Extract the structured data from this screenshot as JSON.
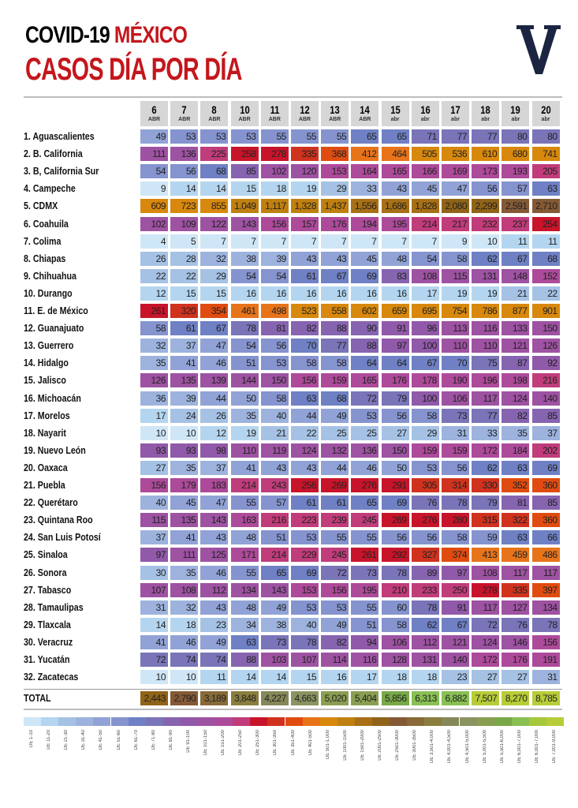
{
  "header": {
    "title_part1": "COVID-19 ",
    "title_part2": "MÉXICO",
    "subtitle": "CASOS DÍA POR DÍA",
    "logo_letter": "V"
  },
  "chart_data": {
    "type": "heatmap",
    "title": "COVID-19 MÉXICO CASOS DÍA POR DÍA",
    "columns": [
      {
        "day": "6",
        "month": "ABR"
      },
      {
        "day": "7",
        "month": "ABR"
      },
      {
        "day": "8",
        "month": "ABR"
      },
      {
        "day": "10",
        "month": "ABR"
      },
      {
        "day": "11",
        "month": "ABR"
      },
      {
        "day": "12",
        "month": "ABR"
      },
      {
        "day": "13",
        "month": "ABR"
      },
      {
        "day": "14",
        "month": "ABR"
      },
      {
        "day": "15",
        "month": "abr"
      },
      {
        "day": "16",
        "month": "abr"
      },
      {
        "day": "17",
        "month": "abr"
      },
      {
        "day": "18",
        "month": "abr"
      },
      {
        "day": "19",
        "month": "abr"
      },
      {
        "day": "20",
        "month": "abr"
      }
    ],
    "rows": [
      {
        "label": "1. Aguascalientes",
        "values": [
          49,
          53,
          53,
          53,
          55,
          55,
          55,
          65,
          65,
          71,
          77,
          77,
          80,
          80
        ]
      },
      {
        "label": "2. B. California",
        "values": [
          111,
          136,
          225,
          258,
          278,
          335,
          368,
          412,
          464,
          505,
          536,
          610,
          680,
          741
        ]
      },
      {
        "label": "3. B, California Sur",
        "values": [
          54,
          56,
          68,
          85,
          102,
          120,
          153,
          164,
          165,
          166,
          169,
          173,
          193,
          205
        ]
      },
      {
        "label": "4. Campeche",
        "values": [
          9,
          14,
          14,
          15,
          18,
          19,
          29,
          33,
          43,
          45,
          47,
          56,
          57,
          63
        ]
      },
      {
        "label": "5. CDMX",
        "values": [
          609,
          723,
          855,
          1049,
          1117,
          1328,
          1437,
          1556,
          1686,
          1828,
          2080,
          2299,
          2591,
          2710
        ]
      },
      {
        "label": "6. Coahuila",
        "values": [
          102,
          109,
          122,
          143,
          156,
          157,
          176,
          194,
          195,
          214,
          217,
          232,
          237,
          254
        ]
      },
      {
        "label": "7. Colima",
        "values": [
          4,
          5,
          7,
          7,
          7,
          7,
          7,
          7,
          7,
          7,
          9,
          10,
          11,
          11
        ]
      },
      {
        "label": "8. Chiapas",
        "values": [
          26,
          28,
          32,
          38,
          39,
          43,
          43,
          45,
          48,
          54,
          58,
          62,
          67,
          68
        ]
      },
      {
        "label": "9. Chihuahua",
        "values": [
          22,
          22,
          29,
          54,
          54,
          61,
          67,
          69,
          83,
          108,
          115,
          131,
          148,
          152
        ]
      },
      {
        "label": "10. Durango",
        "values": [
          12,
          15,
          15,
          16,
          16,
          16,
          16,
          16,
          16,
          17,
          19,
          19,
          21,
          22
        ]
      },
      {
        "label": "11. E. de México",
        "values": [
          261,
          320,
          354,
          461,
          498,
          523,
          558,
          602,
          659,
          695,
          754,
          786,
          877,
          901
        ]
      },
      {
        "label": "12. Guanajuato",
        "values": [
          58,
          61,
          67,
          78,
          81,
          82,
          88,
          90,
          91,
          96,
          113,
          116,
          133,
          150
        ]
      },
      {
        "label": "13. Guerrero",
        "values": [
          32,
          37,
          47,
          54,
          56,
          70,
          77,
          88,
          97,
          100,
          110,
          110,
          121,
          126
        ]
      },
      {
        "label": "14. Hidalgo",
        "values": [
          35,
          41,
          46,
          51,
          53,
          58,
          58,
          64,
          64,
          67,
          70,
          75,
          87,
          92
        ]
      },
      {
        "label": "15. Jalisco",
        "values": [
          126,
          135,
          139,
          144,
          150,
          156,
          159,
          165,
          176,
          178,
          190,
          196,
          198,
          216
        ]
      },
      {
        "label": "16. Michoacán",
        "values": [
          36,
          39,
          44,
          50,
          58,
          63,
          68,
          72,
          79,
          100,
          106,
          117,
          124,
          140
        ]
      },
      {
        "label": "17. Morelos",
        "values": [
          17,
          24,
          26,
          35,
          40,
          44,
          49,
          53,
          56,
          58,
          73,
          77,
          82,
          85
        ]
      },
      {
        "label": "18. Nayarit",
        "values": [
          10,
          10,
          12,
          19,
          21,
          22,
          25,
          25,
          27,
          29,
          31,
          33,
          35,
          37
        ]
      },
      {
        "label": "19. Nuevo León",
        "values": [
          93,
          93,
          98,
          110,
          119,
          124,
          132,
          136,
          150,
          159,
          159,
          172,
          184,
          202
        ]
      },
      {
        "label": "20. Oaxaca",
        "values": [
          27,
          35,
          37,
          41,
          43,
          43,
          44,
          46,
          50,
          53,
          56,
          62,
          63,
          69
        ]
      },
      {
        "label": "21. Puebla",
        "values": [
          156,
          179,
          183,
          214,
          243,
          256,
          269,
          276,
          291,
          305,
          314,
          330,
          352,
          360
        ]
      },
      {
        "label": "22. Querétaro",
        "values": [
          40,
          45,
          47,
          55,
          57,
          61,
          61,
          65,
          69,
          76,
          78,
          79,
          81,
          85
        ]
      },
      {
        "label": "23. Quintana Roo",
        "values": [
          115,
          135,
          143,
          163,
          216,
          223,
          239,
          245,
          269,
          276,
          280,
          315,
          322,
          360
        ]
      },
      {
        "label": "24. San Luis Potosí",
        "values": [
          37,
          41,
          43,
          48,
          51,
          53,
          55,
          55,
          56,
          56,
          58,
          59,
          63,
          66
        ]
      },
      {
        "label": "25. Sinaloa",
        "values": [
          97,
          111,
          125,
          171,
          214,
          229,
          245,
          261,
          292,
          327,
          374,
          413,
          459,
          486
        ]
      },
      {
        "label": "26. Sonora",
        "values": [
          30,
          35,
          46,
          55,
          65,
          69,
          72,
          73,
          78,
          89,
          97,
          108,
          117,
          117
        ]
      },
      {
        "label": "27. Tabasco",
        "values": [
          107,
          108,
          112,
          134,
          143,
          153,
          156,
          195,
          210,
          233,
          250,
          278,
          335,
          397
        ]
      },
      {
        "label": "28. Tamaulipas",
        "values": [
          31,
          32,
          43,
          48,
          49,
          53,
          53,
          55,
          60,
          78,
          91,
          117,
          127,
          134
        ]
      },
      {
        "label": "29. Tlaxcala",
        "values": [
          14,
          18,
          23,
          34,
          38,
          40,
          49,
          51,
          58,
          62,
          67,
          72,
          76,
          78
        ]
      },
      {
        "label": "30. Veracruz",
        "values": [
          41,
          46,
          49,
          63,
          73,
          78,
          82,
          94,
          106,
          112,
          121,
          124,
          146,
          156
        ]
      },
      {
        "label": "31. Yucatán",
        "values": [
          72,
          74,
          74,
          88,
          103,
          107,
          114,
          116,
          128,
          131,
          140,
          172,
          176,
          191
        ]
      },
      {
        "label": "32. Zacatecas",
        "values": [
          10,
          10,
          11,
          14,
          14,
          15,
          16,
          17,
          18,
          18,
          23,
          27,
          27,
          31
        ]
      }
    ],
    "total": {
      "label": "TOTAL",
      "values": [
        2443,
        2790,
        3189,
        3848,
        4227,
        4663,
        5020,
        5404,
        5856,
        6313,
        6882,
        7507,
        8270,
        8785
      ]
    },
    "display": {
      "5. CDMX": [
        "609",
        "723",
        "855",
        "1.049",
        "1,117",
        "1,328",
        "1,437",
        "1,556",
        "1,686",
        "1,828",
        "2,080",
        "2,299",
        "2,591",
        "2,710"
      ],
      "TOTAL": [
        "2,443",
        "2,790",
        "3,189",
        "3,848",
        "4,227",
        "4,663",
        "5,020",
        "5,404",
        "5,856",
        "6,313",
        "6,882",
        "7,507",
        "8,270",
        "8,785"
      ]
    },
    "legend": [
      {
        "label": "DE 1-10",
        "max": 10,
        "color": "#cfe6f6"
      },
      {
        "label": "DE 11-20",
        "max": 20,
        "color": "#b4d5ef"
      },
      {
        "label": "DE 21-30",
        "max": 30,
        "color": "#a5c2e5"
      },
      {
        "label": "DE 31-40",
        "max": 40,
        "color": "#9db3de"
      },
      {
        "label": "DE 41-50",
        "max": 50,
        "color": "#91a3d6"
      },
      {
        "label": "DE 51-60",
        "max": 60,
        "color": "#8593cf"
      },
      {
        "label": "DE 61-70",
        "max": 70,
        "color": "#6f80c4"
      },
      {
        "label": "DE 71-80",
        "max": 80,
        "color": "#7a74b8"
      },
      {
        "label": "DE 81-90",
        "max": 90,
        "color": "#8764b0"
      },
      {
        "label": "DE 91-100",
        "max": 100,
        "color": "#9159a9"
      },
      {
        "label": "DE 101-150",
        "max": 150,
        "color": "#9e52a2"
      },
      {
        "label": "DE 151-200",
        "max": 200,
        "color": "#ad4a9a"
      },
      {
        "label": "DE 201-250",
        "max": 250,
        "color": "#c03c7a"
      },
      {
        "label": "DE 251-300",
        "max": 300,
        "color": "#c8142a"
      },
      {
        "label": "DE 301-350",
        "max": 350,
        "color": "#d0321e"
      },
      {
        "label": "DE 351-400",
        "max": 400,
        "color": "#e04c10"
      },
      {
        "label": "DE 401-500",
        "max": 500,
        "color": "#e8741a"
      },
      {
        "label": "DE 501-1,000",
        "max": 1000,
        "color": "#d8880c"
      },
      {
        "label": "DE 1001-1500",
        "max": 1500,
        "color": "#c08010"
      },
      {
        "label": "DE 1501-2000",
        "max": 2000,
        "color": "#a87016"
      },
      {
        "label": "DE 2001-2500",
        "max": 2500,
        "color": "#906418"
      },
      {
        "label": "DE 2501-3000",
        "max": 3000,
        "color": "#845a36"
      },
      {
        "label": "DE 3001-3500",
        "max": 3500,
        "color": "#886a38"
      },
      {
        "label": "DE 3,501-4,000",
        "max": 4000,
        "color": "#8a7e3e"
      },
      {
        "label": "DE 4,001-4,500",
        "max": 4500,
        "color": "#86885a"
      },
      {
        "label": "DE 4,501-5,000",
        "max": 5000,
        "color": "#8a9460"
      },
      {
        "label": "DE 5,001-5,500",
        "max": 5500,
        "color": "#8a9e52"
      },
      {
        "label": "DE 5,501-6,000",
        "max": 6000,
        "color": "#78a848"
      },
      {
        "label": "DE 6,001-7,000",
        "max": 7000,
        "color": "#88c054"
      },
      {
        "label": "DE 6,001-7,000",
        "max": 7000,
        "color": "#a6c83c"
      },
      {
        "label": "DE 7,001-9,000",
        "max": 9000,
        "color": "#b8cc38"
      }
    ]
  }
}
